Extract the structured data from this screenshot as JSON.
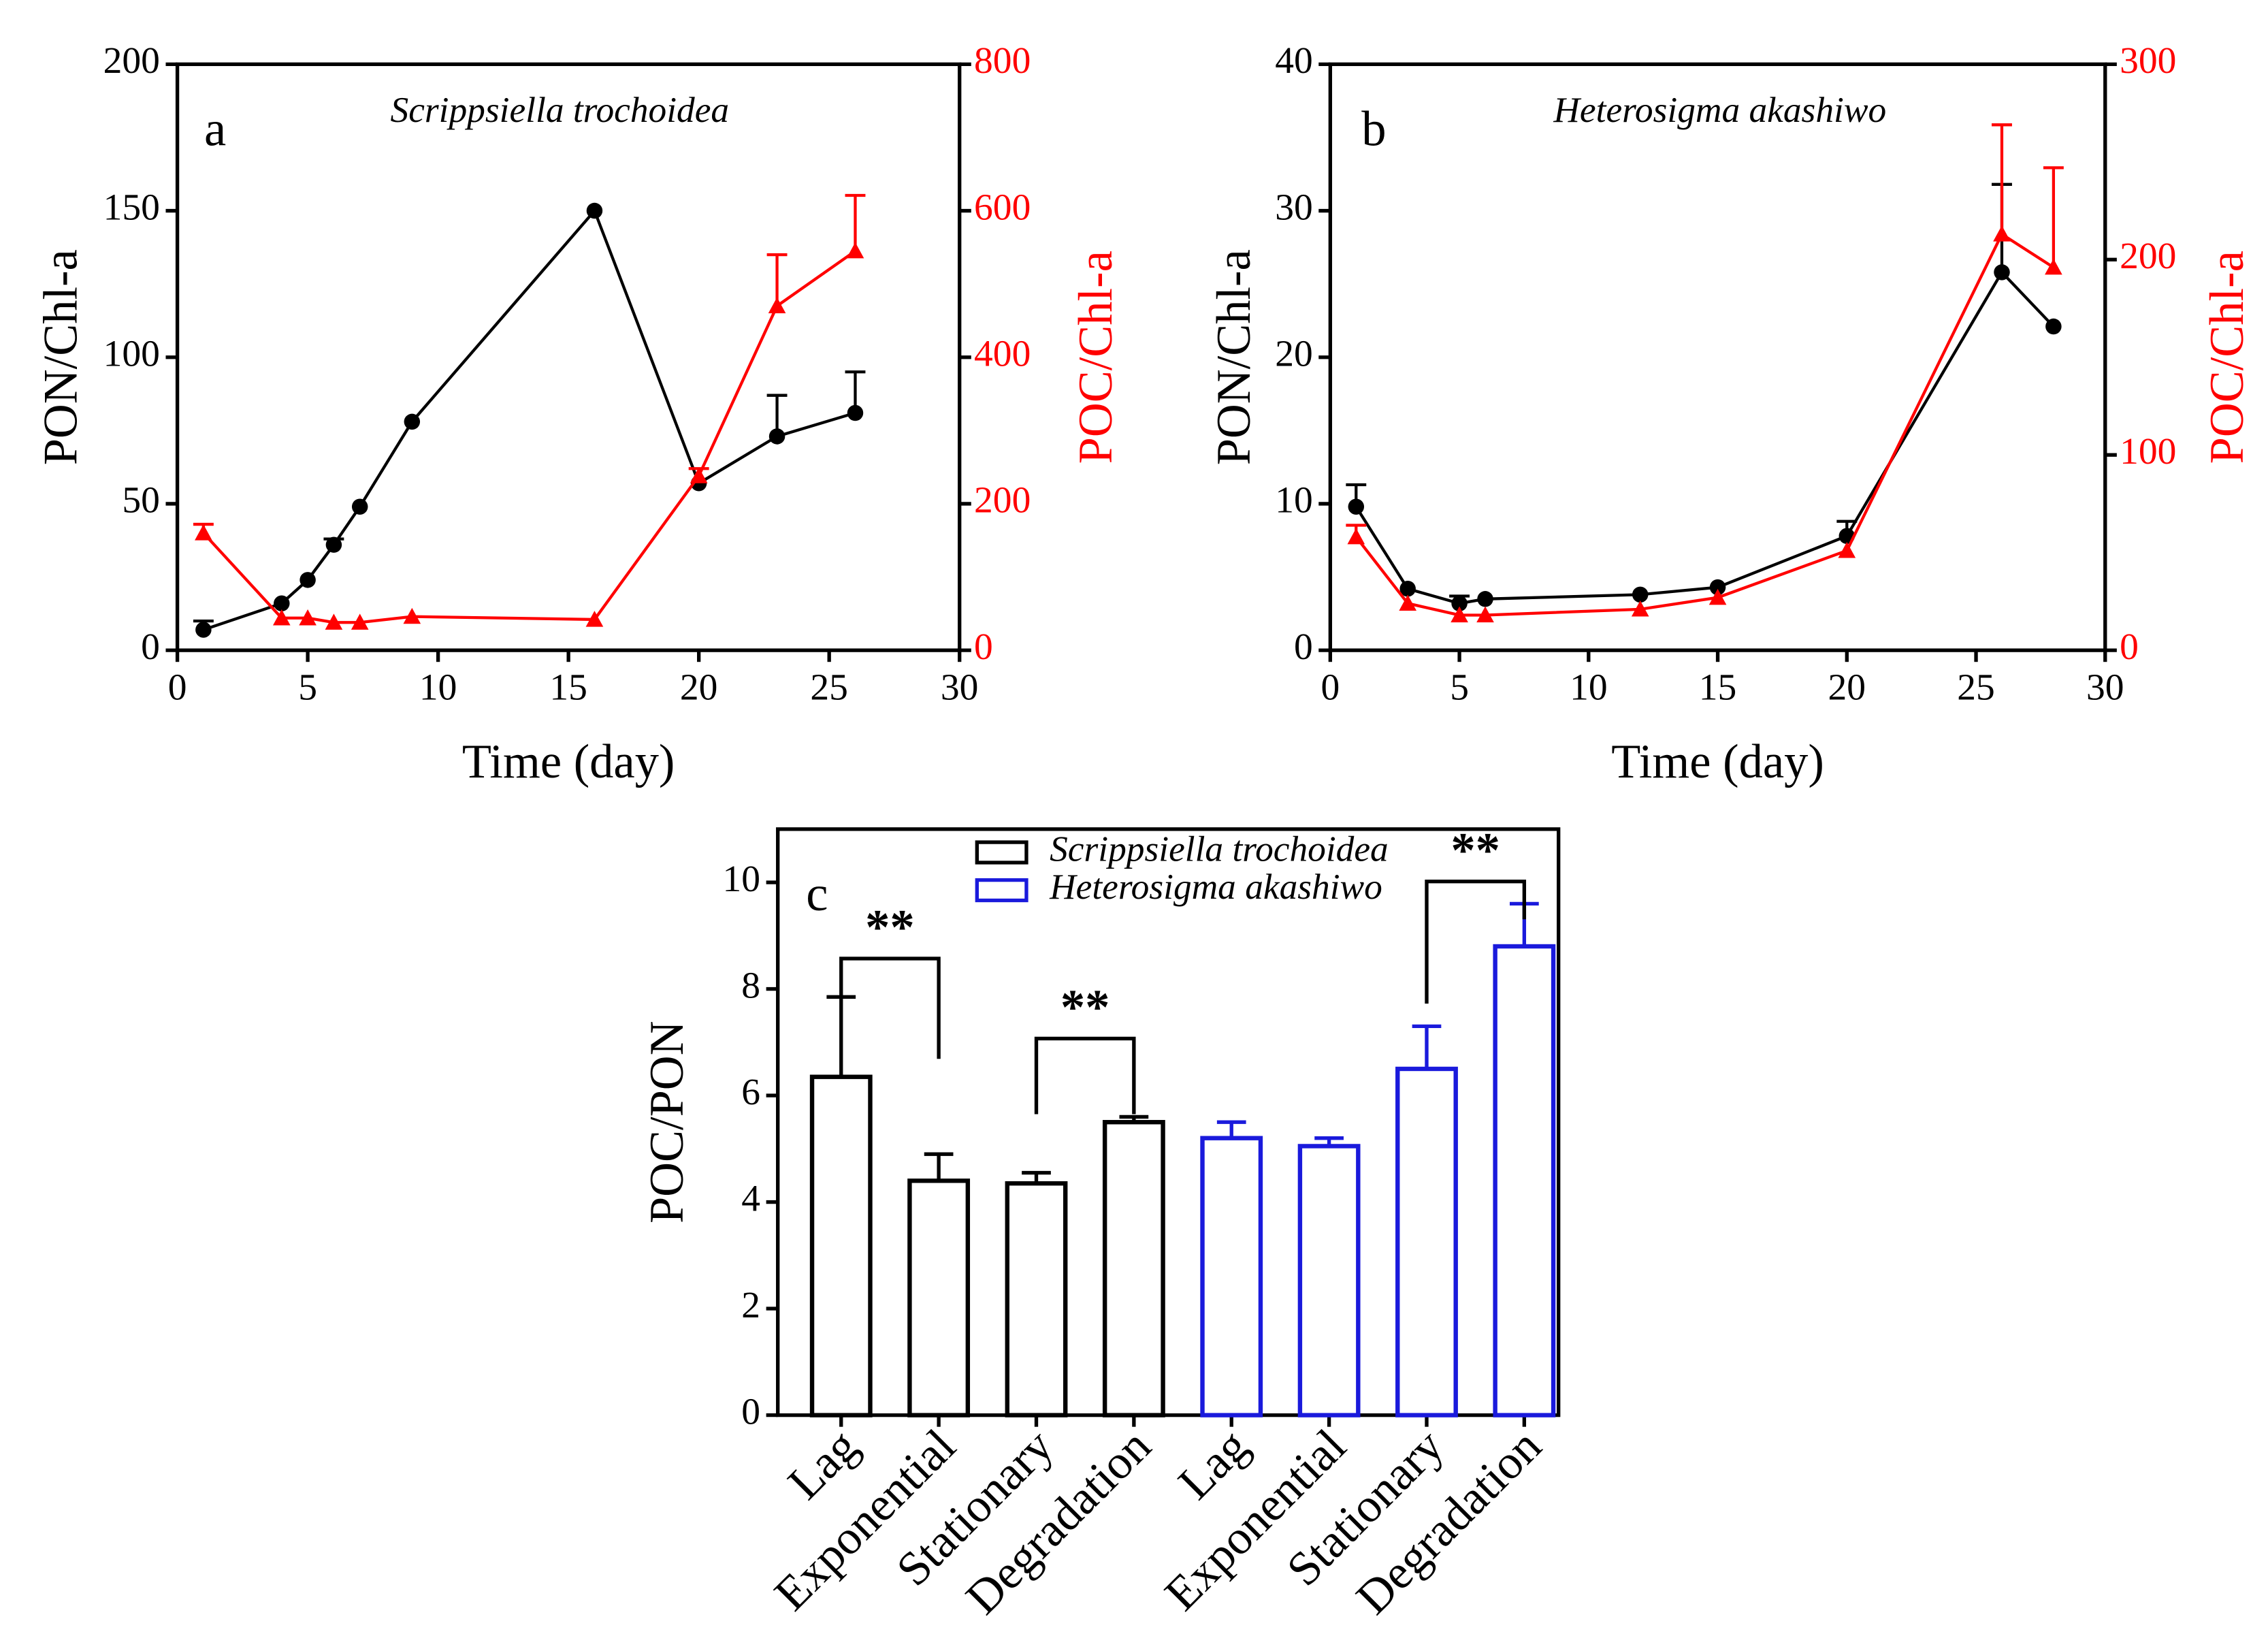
{
  "chart_data": [
    {
      "type": "line",
      "panel_label": "a",
      "title": "Scrippsiella trochoidea",
      "xlabel": "Time (day)",
      "ylabel": "PON/Chl-a",
      "y2label": "POC/Chl-a",
      "y2_color": "#ff0000",
      "xlim": [
        0,
        30
      ],
      "xticks": [
        0,
        5,
        10,
        15,
        20,
        25,
        30
      ],
      "ylim": [
        0,
        200
      ],
      "yticks": [
        0,
        50,
        100,
        150,
        200
      ],
      "y2lim": [
        0,
        800
      ],
      "y2ticks": [
        0,
        200,
        400,
        600,
        800
      ],
      "series": [
        {
          "color": "#000000",
          "marker": "circle",
          "x": [
            1,
            4,
            5,
            6,
            7,
            9,
            16,
            20,
            23,
            26
          ],
          "values": [
            7,
            16,
            24,
            36,
            49,
            78,
            150,
            57,
            73,
            81
          ],
          "errors": [
            3,
            null,
            null,
            2,
            null,
            null,
            null,
            null,
            14,
            14
          ]
        },
        {
          "color": "#ff0000",
          "marker": "triangle",
          "axis": "y2",
          "x": [
            1,
            4,
            5,
            6,
            7,
            9,
            16,
            20,
            23,
            26
          ],
          "values": [
            160,
            44,
            44,
            38,
            38,
            46,
            42,
            238,
            470,
            545
          ],
          "errors": [
            12,
            null,
            null,
            null,
            null,
            null,
            null,
            10,
            70,
            76
          ]
        }
      ]
    },
    {
      "type": "line",
      "panel_label": "b",
      "title": "Heterosigma akashiwo",
      "xlabel": "Time (day)",
      "ylabel": "PON/Chl-a",
      "y2label": "POC/Chl-a",
      "y2_color": "#ff0000",
      "xlim": [
        0,
        30
      ],
      "xticks": [
        0,
        5,
        10,
        15,
        20,
        25,
        30
      ],
      "ylim": [
        0,
        40
      ],
      "yticks": [
        0,
        10,
        20,
        30,
        40
      ],
      "y2lim": [
        0,
        300
      ],
      "y2ticks": [
        0,
        100,
        200,
        300
      ],
      "series": [
        {
          "color": "#000000",
          "marker": "circle",
          "x": [
            1,
            3,
            5,
            6,
            12,
            15,
            20,
            26,
            28
          ],
          "values": [
            9.8,
            4.2,
            3.2,
            3.5,
            3.8,
            4.3,
            7.8,
            25.8,
            22.1
          ],
          "errors": [
            1.5,
            null,
            0.5,
            null,
            null,
            null,
            1,
            6,
            null
          ]
        },
        {
          "color": "#ff0000",
          "marker": "triangle",
          "axis": "y2",
          "x": [
            1,
            3,
            5,
            6,
            12,
            15,
            20,
            26,
            28
          ],
          "values": [
            58,
            24,
            18,
            18,
            21,
            27,
            51,
            213,
            196
          ],
          "errors": [
            6,
            null,
            null,
            null,
            null,
            null,
            null,
            56,
            51
          ]
        }
      ]
    },
    {
      "type": "bar",
      "panel_label": "c",
      "ylabel": "POC/PON",
      "legend": "top",
      "categories": [
        "Lag",
        "Exponential",
        "Stationary",
        "Degradation",
        "Lag",
        "Exponential",
        "Stationary",
        "Degradation"
      ],
      "ylim": [
        0,
        11
      ],
      "yticks": [
        0,
        2,
        4,
        6,
        8,
        10
      ],
      "annotations": [
        "**",
        "**",
        "**"
      ],
      "series": [
        {
          "name": "Scrippsiella trochoidea",
          "color": "#000000",
          "values": [
            6.35,
            4.4,
            4.35,
            5.5,
            null,
            null,
            null,
            null
          ],
          "errors": [
            1.5,
            0.5,
            0.2,
            0.1,
            null,
            null,
            null,
            null
          ]
        },
        {
          "name": "Heterosigma akashiwo",
          "color": "#1a1adc",
          "values": [
            null,
            null,
            null,
            null,
            5.2,
            5.05,
            6.5,
            8.8
          ],
          "errors": [
            null,
            null,
            null,
            null,
            0.3,
            0.15,
            0.8,
            0.8
          ]
        }
      ]
    }
  ]
}
